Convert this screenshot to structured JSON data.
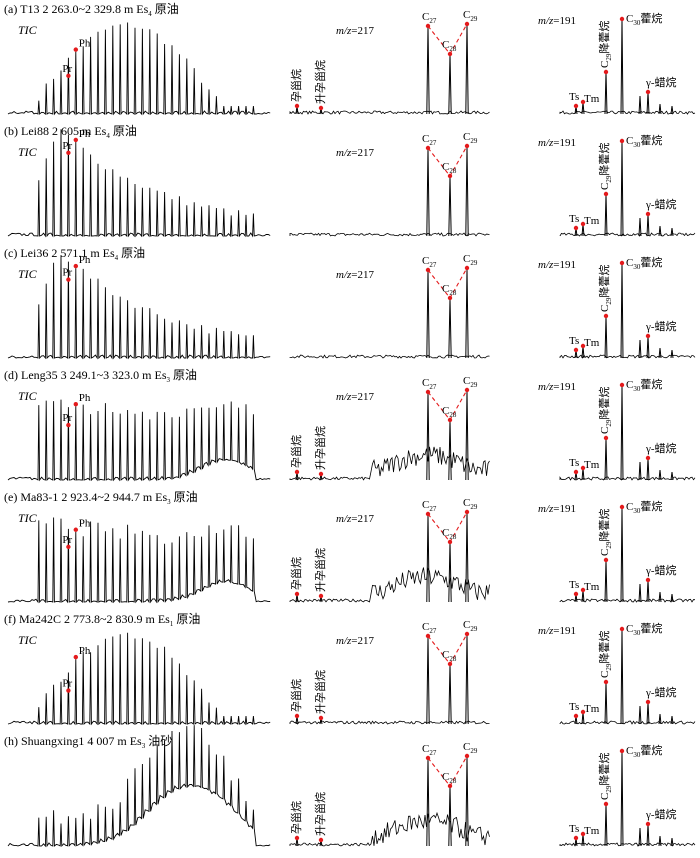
{
  "chart_data": {
    "type": "line",
    "title": "",
    "panel_count": 7,
    "columns": [
      {
        "id": "tic",
        "label": "TIC"
      },
      {
        "id": "sterane",
        "label": "m/z=217"
      },
      {
        "id": "hopane",
        "label": "m/z=191"
      }
    ],
    "compound_labels": {
      "pr": "Pr",
      "ph": "Ph",
      "c27": "C27",
      "c28": "C28",
      "c29": "C29",
      "pregnane": "孕甾烷",
      "homopregnane": "升孕甾烷",
      "ts": "Ts",
      "tm": "Tm",
      "c29_norhopane": "C29降藿烷",
      "c30_hopane": "C30藿烷",
      "gammacerane": "γ-蜡烷"
    },
    "panels": [
      {
        "letter": "(a)",
        "well": "T13",
        "depth": "2 263.0~2 329.8 m",
        "formation": "Es4",
        "sample": "原油",
        "tic_label": true,
        "mz217_label": true,
        "mz191_label": true,
        "pregnane": true,
        "tic_mode": "hump"
      },
      {
        "letter": "(b)",
        "well": "Lei88",
        "depth": "2 605 m",
        "formation": "Es4",
        "sample": "原油",
        "tic_label": true,
        "mz217_label": true,
        "mz191_label": true,
        "pregnane": false,
        "tic_mode": "decay"
      },
      {
        "letter": "(c)",
        "well": "Lei36",
        "depth": "2 571.1 m",
        "formation": "Es4",
        "sample": "原油",
        "tic_label": true,
        "mz217_label": true,
        "mz191_label": true,
        "pregnane": false,
        "tic_mode": "decay"
      },
      {
        "letter": "(d)",
        "well": "Leng35",
        "depth": "3 249.1~3 323.0 m",
        "formation": "Es3",
        "sample": "原油",
        "tic_label": true,
        "mz217_label": true,
        "mz191_label": true,
        "pregnane": true,
        "tic_mode": "flat"
      },
      {
        "letter": "(e)",
        "well": "Ma83-1",
        "depth": "2 923.4~2 944.7 m",
        "formation": "Es3",
        "sample": "原油",
        "tic_label": true,
        "mz217_label": true,
        "mz191_label": true,
        "pregnane": true,
        "tic_mode": "flat"
      },
      {
        "letter": "(f)",
        "well": "Ma242C",
        "depth": "2 773.8~2 830.9 m",
        "formation": "Es1",
        "sample": "原油",
        "tic_label": true,
        "mz217_label": true,
        "mz191_label": true,
        "pregnane": true,
        "tic_mode": "hump"
      },
      {
        "letter": "(h)",
        "well": "Shuangxing1",
        "depth": "4 007 m",
        "formation": "Es3",
        "sample": "油砂",
        "tic_label": false,
        "mz217_label": false,
        "mz191_label": false,
        "pregnane": true,
        "tic_mode": "ucm"
      }
    ]
  },
  "colors": {
    "trace": "#000000",
    "marker": "#e41a1c",
    "dash": "#e41a1c"
  }
}
